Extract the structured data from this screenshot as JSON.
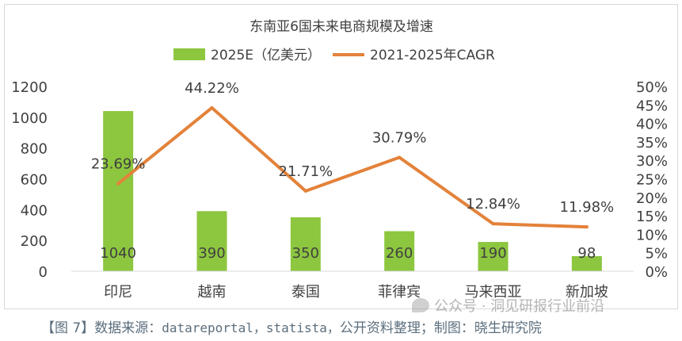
{
  "colors": {
    "bar": "#8dc63f",
    "line": "#e3823a",
    "axis_text": "#404040",
    "grid": "#d9d9d9",
    "caption": "#5b6e7d"
  },
  "chart_data": {
    "type": "bar",
    "title": "东南亚6国未来电商规模及增速",
    "categories": [
      "印尼",
      "越南",
      "泰国",
      "菲律宾",
      "马来西亚",
      "新加坡"
    ],
    "series": [
      {
        "name": "2025E（亿美元）",
        "kind": "bar",
        "axis": "left",
        "values": [
          1040,
          390,
          350,
          260,
          190,
          98
        ],
        "labels": [
          "1040",
          "390",
          "350",
          "260",
          "190",
          "98"
        ]
      },
      {
        "name": "2021-2025年CAGR",
        "kind": "line",
        "axis": "right",
        "values": [
          23.69,
          44.22,
          21.71,
          30.79,
          12.84,
          11.98
        ],
        "labels": [
          "23.69%",
          "44.22%",
          "21.71%",
          "30.79%",
          "12.84%",
          "11.98%"
        ]
      }
    ],
    "ylim_left": [
      0,
      1200
    ],
    "yticks_left": [
      "0",
      "200",
      "400",
      "600",
      "800",
      "1000",
      "1200"
    ],
    "ylim_right": [
      0,
      50
    ],
    "yticks_right": [
      "0%",
      "5%",
      "10%",
      "15%",
      "20%",
      "25%",
      "30%",
      "35%",
      "40%",
      "45%",
      "50%"
    ],
    "legend_position": "top-center",
    "grid": false
  },
  "caption": {
    "prefix": "【图 7】数据来源：",
    "sources": "datareportal，statista，",
    "suffix": "公开资料整理；制图：晓生研究院"
  },
  "watermark": {
    "text": "公众号 · 洞见研报行业前沿",
    "icon": "wechat-icon"
  }
}
